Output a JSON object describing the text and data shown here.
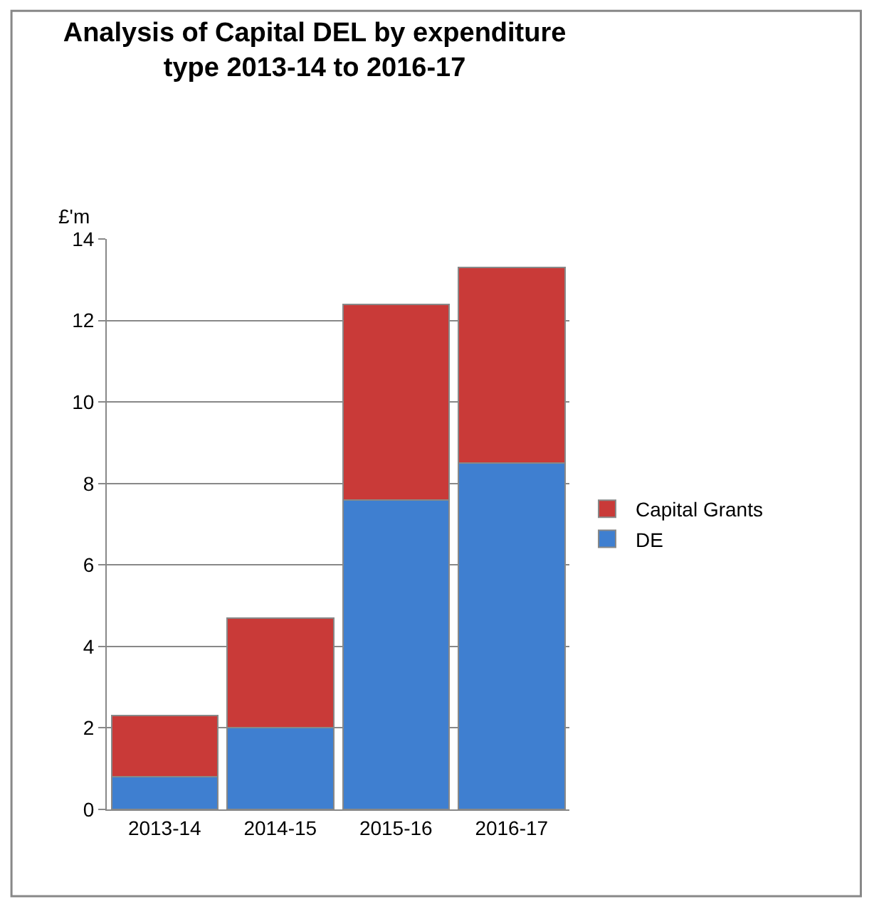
{
  "chart_data": {
    "type": "bar",
    "title": "Analysis of Capital DEL by expenditure type 2013-14 to 2016-17",
    "ylabel": "£'m",
    "categories": [
      "2013-14",
      "2014-15",
      "2015-16",
      "2016-17"
    ],
    "series": [
      {
        "name": "DE",
        "color": "#3f7fd0",
        "values": [
          0.8,
          2.0,
          7.6,
          8.5
        ]
      },
      {
        "name": "Capital Grants",
        "color": "#c93a38",
        "values": [
          1.5,
          2.7,
          4.8,
          4.8
        ]
      }
    ],
    "stacked": true,
    "ylim": [
      0,
      14
    ],
    "yticks": [
      0,
      2,
      4,
      6,
      8,
      10,
      12,
      14
    ],
    "grid": "y",
    "legend": "right"
  }
}
